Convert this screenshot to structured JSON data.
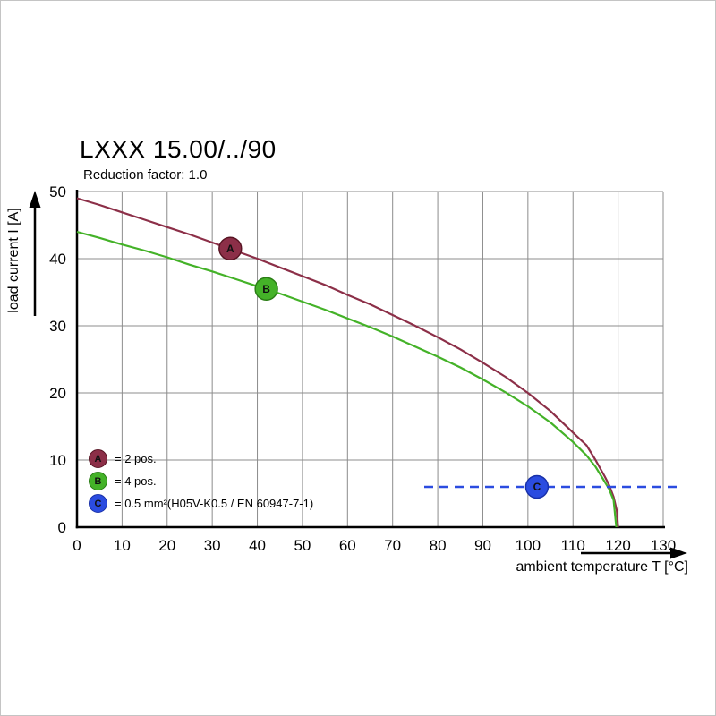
{
  "chart_data": {
    "type": "line",
    "title": "LXXX 15.00/../90",
    "subtitle": "Reduction factor: 1.0",
    "xlabel": "ambient temperature T [°C]",
    "ylabel": "load current I [A]",
    "xlim": [
      0,
      130
    ],
    "ylim": [
      0,
      50
    ],
    "xticks": [
      0,
      10,
      20,
      30,
      40,
      50,
      60,
      70,
      80,
      90,
      100,
      110,
      120,
      130
    ],
    "yticks": [
      0,
      10,
      20,
      30,
      40,
      50
    ],
    "grid": true,
    "grid_color": "#8c8c8c",
    "axis_color": "#000000",
    "legend_position": "bottom-left-inside",
    "series": [
      {
        "name": "A",
        "legend_label": "= 2 pos.",
        "color": "#8c2f48",
        "edge": "#571322",
        "width": 2.2,
        "style": "solid",
        "points": [
          [
            0,
            49
          ],
          [
            5,
            48
          ],
          [
            10,
            46.9
          ],
          [
            15,
            45.8
          ],
          [
            20,
            44.7
          ],
          [
            25,
            43.6
          ],
          [
            30,
            42.4
          ],
          [
            35,
            41.2
          ],
          [
            40,
            40
          ],
          [
            45,
            38.7
          ],
          [
            50,
            37.4
          ],
          [
            55,
            36.1
          ],
          [
            60,
            34.6
          ],
          [
            65,
            33.2
          ],
          [
            70,
            31.6
          ],
          [
            75,
            30
          ],
          [
            80,
            28.3
          ],
          [
            85,
            26.5
          ],
          [
            90,
            24.5
          ],
          [
            95,
            22.4
          ],
          [
            100,
            20
          ],
          [
            105,
            17.3
          ],
          [
            110,
            14.1
          ],
          [
            113,
            12.2
          ],
          [
            115,
            10
          ],
          [
            117,
            7.6
          ],
          [
            118,
            6.3
          ],
          [
            119,
            4.5
          ],
          [
            119.7,
            2.5
          ],
          [
            120,
            0
          ]
        ],
        "marker": {
          "x": 34,
          "y": 41.5
        }
      },
      {
        "name": "B",
        "legend_label": "= 4 pos.",
        "color": "#44b228",
        "edge": "#2a7d15",
        "width": 2.2,
        "style": "solid",
        "points": [
          [
            0,
            44
          ],
          [
            5,
            43.1
          ],
          [
            10,
            42.1
          ],
          [
            15,
            41.2
          ],
          [
            20,
            40.2
          ],
          [
            25,
            39.1
          ],
          [
            30,
            38.1
          ],
          [
            35,
            37
          ],
          [
            40,
            35.9
          ],
          [
            45,
            34.8
          ],
          [
            50,
            33.6
          ],
          [
            55,
            32.4
          ],
          [
            60,
            31.1
          ],
          [
            65,
            29.8
          ],
          [
            70,
            28.4
          ],
          [
            75,
            26.9
          ],
          [
            80,
            25.4
          ],
          [
            85,
            23.8
          ],
          [
            90,
            22
          ],
          [
            95,
            20.1
          ],
          [
            100,
            18
          ],
          [
            105,
            15.6
          ],
          [
            110,
            12.7
          ],
          [
            113,
            10.7
          ],
          [
            115,
            9
          ],
          [
            117,
            6.8
          ],
          [
            118,
            5.7
          ],
          [
            119,
            4
          ],
          [
            119.6,
            0
          ]
        ],
        "marker": {
          "x": 42,
          "y": 35.5
        }
      },
      {
        "name": "C",
        "legend_label": "= 0.5 mm²(H05V-K0.5 / EN 60947-7-1)",
        "color": "#2b4ce0",
        "edge": "#1830a8",
        "width": 2.6,
        "style": "dashed",
        "dash": "10 7",
        "points": [
          [
            77,
            6
          ],
          [
            134,
            6
          ]
        ],
        "marker": {
          "x": 102,
          "y": 6
        }
      }
    ]
  }
}
